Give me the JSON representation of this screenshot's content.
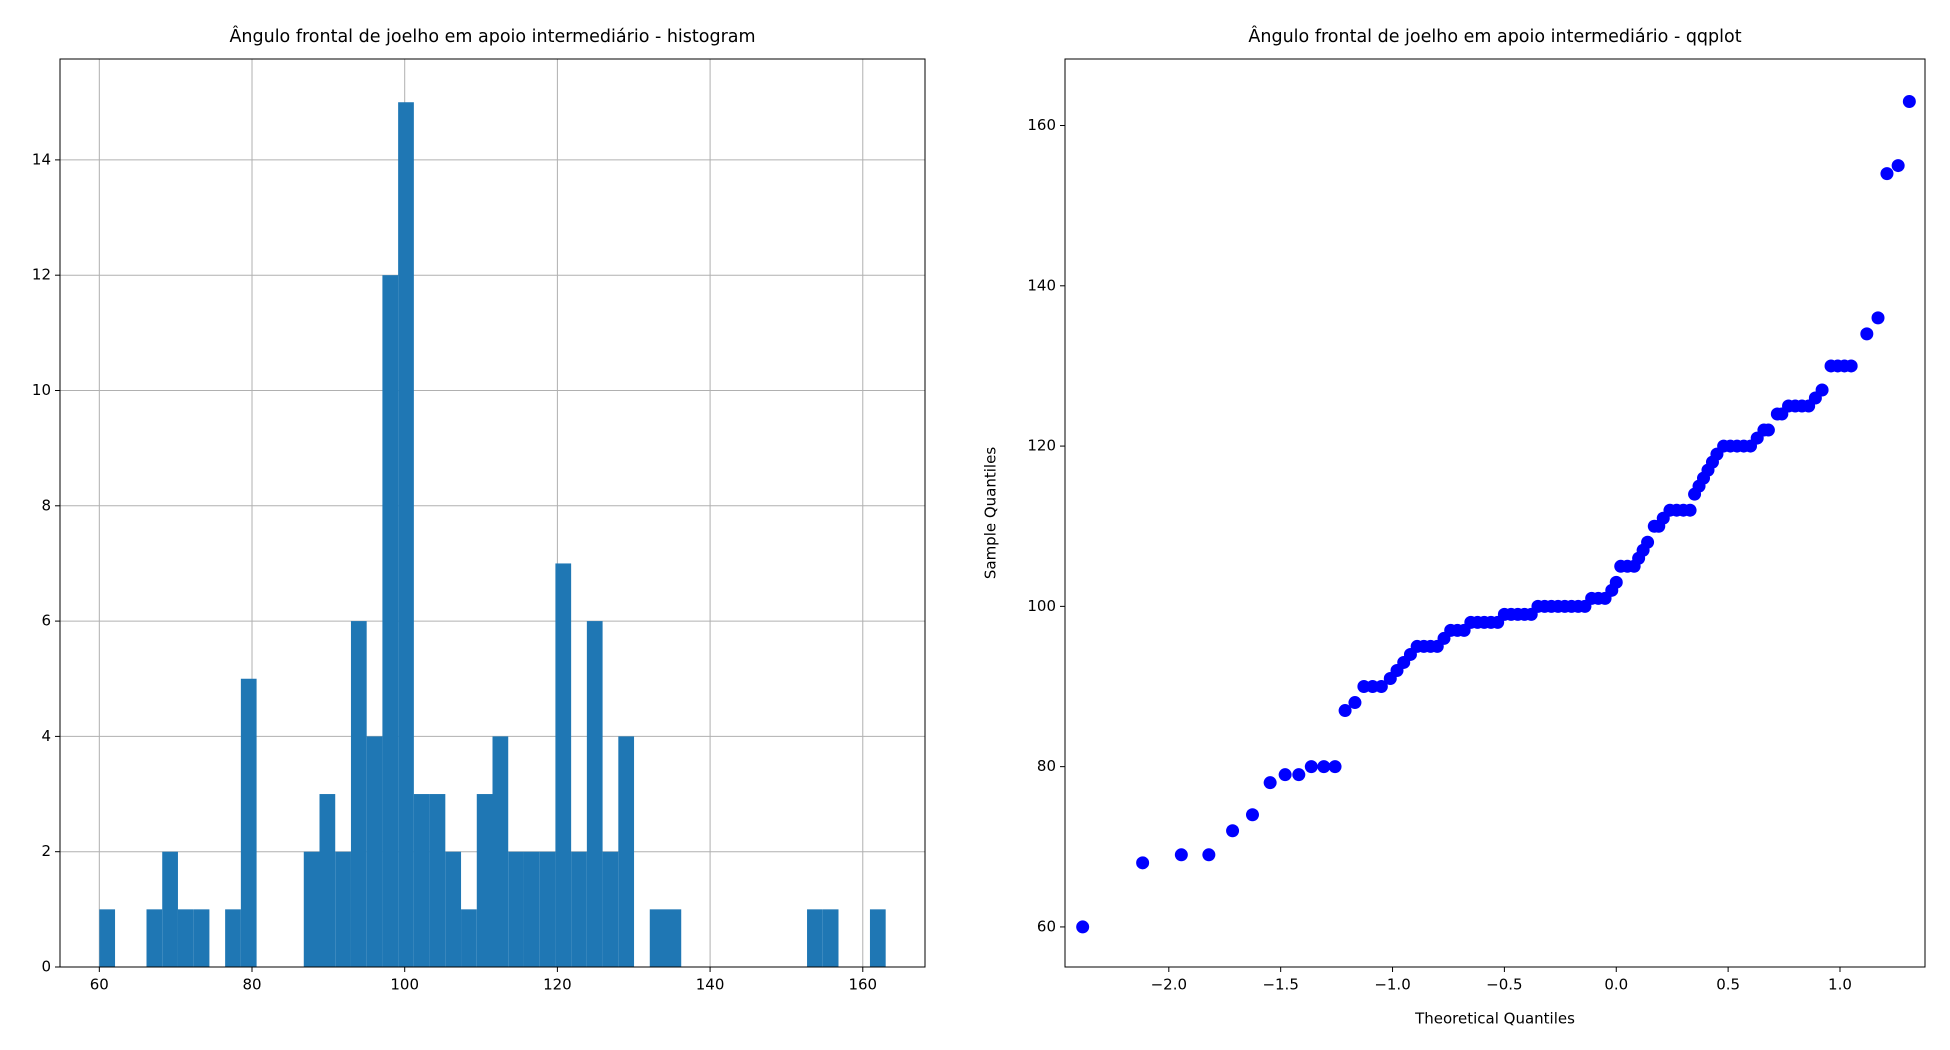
{
  "chart_data": [
    {
      "type": "histogram",
      "title": "Ângulo frontal de joelho em apoio intermediário - histogram",
      "color": "#1f77b4",
      "grid": true,
      "bins": [
        60,
        62.06,
        64.12,
        66.18,
        68.24,
        70.3,
        72.36,
        74.42,
        76.48,
        78.54,
        80.6,
        82.66,
        84.72,
        86.78,
        88.84,
        90.9,
        92.96,
        95.02,
        97.08,
        99.14,
        101.2,
        103.26,
        105.32,
        107.38,
        109.44,
        111.5,
        113.56,
        115.62,
        117.68,
        119.74,
        121.8,
        123.86,
        125.92,
        127.98,
        130.04,
        132.1,
        134.16,
        136.22,
        138.28,
        140.34,
        142.4,
        144.46,
        146.52,
        148.58,
        150.64,
        152.7,
        154.76,
        156.82,
        158.88,
        160.94,
        163
      ],
      "values": [
        1,
        0,
        0,
        1,
        2,
        1,
        1,
        0,
        1,
        5,
        0,
        0,
        0,
        2,
        3,
        2,
        6,
        4,
        12,
        15,
        3,
        3,
        2,
        1,
        3,
        4,
        2,
        2,
        2,
        7,
        2,
        6,
        2,
        4,
        0,
        1,
        1,
        0,
        0,
        0,
        0,
        0,
        0,
        0,
        0,
        1,
        1,
        0,
        0,
        1
      ],
      "xlim": [
        54.85,
        168.15
      ],
      "ylim": [
        0,
        15.75
      ],
      "xticks": [
        60,
        80,
        100,
        120,
        140,
        160
      ],
      "yticks": [
        0,
        2,
        4,
        6,
        8,
        10,
        12,
        14
      ]
    },
    {
      "type": "scatter",
      "title": "Ângulo frontal de joelho em apoio intermediário - qqplot",
      "color": "#0000ff",
      "grid": false,
      "x_label": "Theoretical Quantiles",
      "y_label": "Sample Quantiles",
      "x": [
        -2.385,
        -2.117,
        -1.944,
        -1.821,
        -1.715,
        -1.626,
        -1.547,
        -1.48,
        -1.419,
        -1.363,
        -1.307,
        -1.257,
        -1.212,
        -1.168,
        -1.128,
        -1.089,
        -1.05,
        -1.01,
        -0.98,
        -0.95,
        -0.92,
        -0.89,
        -0.86,
        -0.83,
        -0.8,
        -0.77,
        -0.74,
        -0.71,
        -0.68,
        -0.65,
        -0.62,
        -0.59,
        -0.56,
        -0.53,
        -0.5,
        -0.47,
        -0.44,
        -0.41,
        -0.38,
        -0.35,
        -0.32,
        -0.29,
        -0.26,
        -0.23,
        -0.2,
        -0.17,
        -0.14,
        -0.11,
        -0.08,
        -0.05,
        -0.02,
        0.0,
        0.02,
        0.05,
        0.08,
        0.1,
        0.12,
        0.14,
        0.17,
        0.19,
        0.21,
        0.24,
        0.27,
        0.3,
        0.33,
        0.35,
        0.37,
        0.39,
        0.41,
        0.43,
        0.45,
        0.48,
        0.51,
        0.54,
        0.57,
        0.6,
        0.63,
        0.66,
        0.68,
        0.72,
        0.74,
        0.77,
        0.8,
        0.83,
        0.86,
        0.89,
        0.92,
        0.96,
        0.99,
        1.02,
        1.05,
        1.12,
        1.17,
        1.21,
        1.26,
        1.31
      ],
      "values": [
        60,
        68,
        69,
        69,
        72,
        74,
        78,
        79,
        79,
        80,
        80,
        80,
        87,
        88,
        90,
        90,
        90,
        91,
        92,
        93,
        94,
        95,
        95,
        95,
        95,
        96,
        97,
        97,
        97,
        98,
        98,
        98,
        98,
        98,
        99,
        99,
        99,
        99,
        99,
        100,
        100,
        100,
        100,
        100,
        100,
        100,
        100,
        101,
        101,
        101,
        102,
        103,
        105,
        105,
        105,
        106,
        107,
        108,
        110,
        110,
        111,
        112,
        112,
        112,
        112,
        114,
        115,
        116,
        117,
        118,
        119,
        120,
        120,
        120,
        120,
        120,
        121,
        122,
        122,
        124,
        124,
        125,
        125,
        125,
        125,
        126,
        127,
        130,
        130,
        130,
        130,
        134,
        136,
        154,
        155,
        163
      ],
      "xlim": [
        -2.464,
        1.38
      ],
      "ylim": [
        55,
        168.3
      ],
      "xticks": [
        {
          "value": -2.0,
          "label": "−2.0"
        },
        {
          "value": -1.5,
          "label": "−1.5"
        },
        {
          "value": -1.0,
          "label": "−1.0"
        },
        {
          "value": -0.5,
          "label": "−0.5"
        },
        {
          "value": 0,
          "label": "0.0"
        },
        {
          "value": 0.5,
          "label": "0.5"
        },
        {
          "value": 1.0,
          "label": "1.0"
        }
      ],
      "yticks": [
        60,
        80,
        100,
        120,
        140,
        160
      ]
    }
  ]
}
